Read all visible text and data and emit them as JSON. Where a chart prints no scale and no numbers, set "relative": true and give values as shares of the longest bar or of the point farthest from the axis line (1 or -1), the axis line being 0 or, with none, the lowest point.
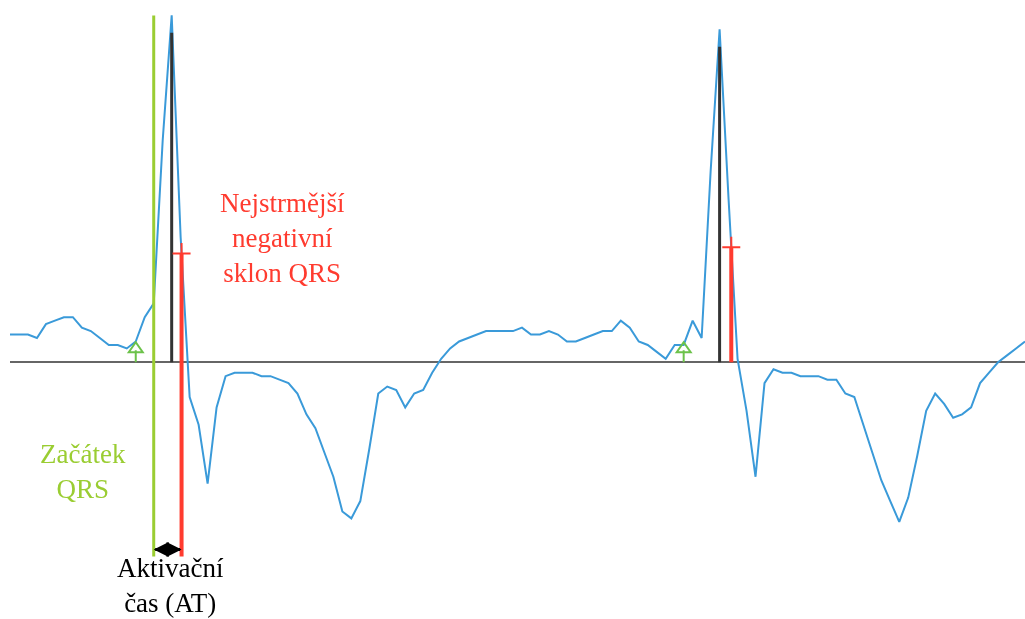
{
  "chart_data": {
    "type": "line",
    "relative": true,
    "categories": [
      null,
      null,
      null,
      null,
      null,
      null,
      null,
      null,
      null,
      null,
      null,
      null,
      null,
      null,
      null,
      null,
      null,
      null,
      null,
      null,
      null,
      null,
      null,
      null,
      null,
      null,
      null,
      null,
      null,
      null,
      null,
      null,
      null,
      null,
      null,
      null,
      null,
      null,
      null,
      null,
      null,
      null,
      null,
      null,
      null,
      null,
      null,
      null,
      null,
      null,
      null,
      null,
      null,
      null,
      null,
      null,
      null,
      null,
      null,
      null,
      null,
      null,
      null,
      null,
      null,
      null,
      null,
      null,
      null,
      null,
      null,
      null,
      null,
      null,
      null,
      null,
      null,
      null,
      null,
      null,
      null,
      null,
      null,
      null,
      null,
      null,
      null,
      null,
      null,
      null,
      null,
      null,
      null,
      null,
      null,
      null,
      null,
      null,
      null,
      null,
      null,
      null,
      null,
      null,
      null,
      null,
      null,
      null,
      null,
      null,
      null,
      null,
      null,
      null
    ],
    "series": [
      {
        "color": "#3a9ad9",
        "values": [
          0.08,
          0.08,
          0.08,
          0.07,
          0.11,
          0.12,
          0.13,
          0.13,
          0.1,
          0.09,
          0.07,
          0.05,
          0.05,
          0.04,
          0.06,
          0.13,
          0.17,
          0.64,
          1,
          0.36,
          -0.1,
          -0.18,
          -0.35,
          -0.13,
          -0.04,
          -0.03,
          -0.03,
          -0.03,
          -0.04,
          -0.04,
          -0.05,
          -0.06,
          -0.09,
          -0.15,
          -0.19,
          -0.26,
          -0.33,
          -0.43,
          -0.45,
          -0.4,
          -0.25,
          -0.09,
          -0.07,
          -0.08,
          -0.13,
          -0.09,
          -0.08,
          -0.03,
          0.01,
          0.04,
          0.06,
          0.07,
          0.08,
          0.09,
          0.09,
          0.09,
          0.09,
          0.1,
          0.08,
          0.08,
          0.09,
          0.08,
          0.06,
          0.06,
          0.07,
          0.08,
          0.09,
          0.09,
          0.12,
          0.1,
          0.06,
          0.05,
          0.03,
          0.01,
          0.05,
          0.05,
          0.12,
          0.07,
          0.55,
          0.96,
          0.47,
          0.01,
          -0.14,
          -0.33,
          -0.06,
          -0.02,
          -0.03,
          -0.03,
          -0.04,
          -0.04,
          -0.04,
          -0.05,
          -0.05,
          -0.09,
          -0.1,
          -0.18,
          -0.26,
          -0.34,
          -0.4,
          -0.46,
          -0.39,
          -0.27,
          -0.14,
          -0.09,
          -0.12,
          -0.16,
          -0.15,
          -0.13,
          -0.06,
          -0.03,
          0,
          0.02,
          0.04,
          0.06
        ]
      }
    ],
    "annotations": [
      "Nejstrmější\nnegativní\nsklon QRS",
      "Začátek\nQRS",
      "Aktivační\nčas (AT)"
    ]
  }
}
